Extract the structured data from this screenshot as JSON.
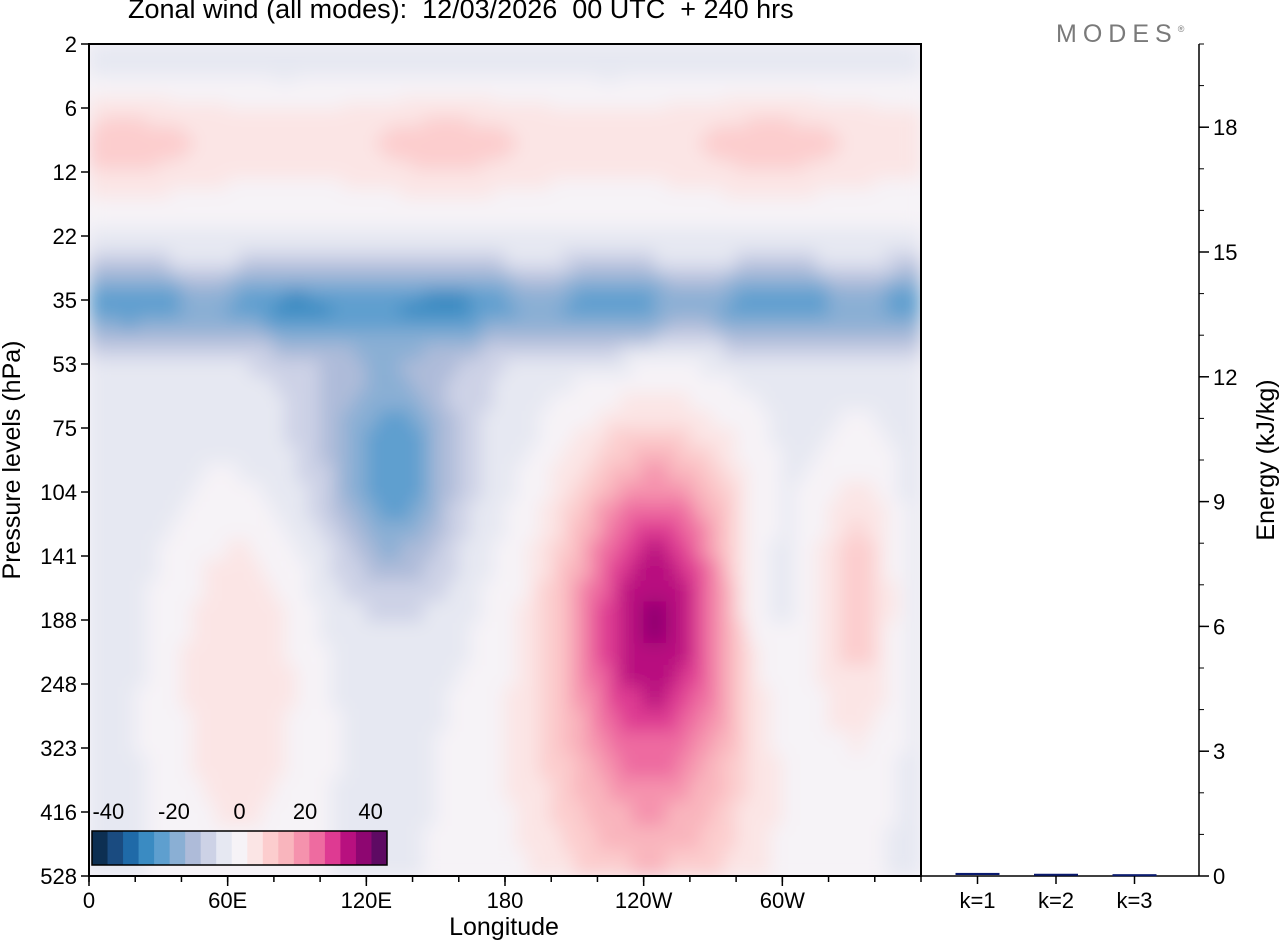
{
  "header": {
    "title": "Zonal wind (all modes):  12/03/2026  00 UTC  + 240 hrs",
    "brand": "MODES",
    "brand_mark": "®"
  },
  "chart_data": [
    {
      "type": "heatmap",
      "title": "Zonal wind (all modes):  12/03/2026  00 UTC  + 240 hrs",
      "xlabel": "Longitude",
      "ylabel": "Pressure levels (hPa)",
      "x_tick_labels": [
        "0",
        "60E",
        "120E",
        "180",
        "120W",
        "60W"
      ],
      "x_tick_degrees": [
        0,
        60,
        120,
        180,
        240,
        300
      ],
      "x_range_degrees": [
        0,
        360
      ],
      "y_levels_hPa": [
        "2",
        "6",
        "12",
        "22",
        "35",
        "53",
        "75",
        "104",
        "141",
        "188",
        "248",
        "323",
        "416",
        "528"
      ],
      "y_axis": "log-pressure, inverted (2 hPa at top, 528 hPa at bottom)",
      "colorbar": {
        "labels": [
          "-40",
          "-20",
          "0",
          "20",
          "40"
        ],
        "min": -45,
        "max": 45,
        "step": 5,
        "colors": [
          "#0d2f52",
          "#1a4b80",
          "#1f6aa8",
          "#3a8bc2",
          "#5e9fcf",
          "#8aafd4",
          "#aebbd9",
          "#cdd2e6",
          "#e6e8f2",
          "#f6f3f7",
          "#fbe5e5",
          "#fccdce",
          "#f9b5bd",
          "#f592ad",
          "#ee6ba0",
          "#de3a92",
          "#b8107f",
          "#8e0671",
          "#5e0a63"
        ]
      },
      "features": [
        {
          "name": "upper pink band",
          "level_hPa": "6-14",
          "value_ms": 12
        },
        {
          "name": "easterly jet",
          "level_hPa": "28-45",
          "value_ms": -22
        },
        {
          "name": "westerly max near 120W",
          "level_hPa": "104-300",
          "value_ms": 35
        },
        {
          "name": "easterlies near 120E-140E",
          "level_hPa": "75-141",
          "value_ms": -18
        },
        {
          "name": "westerlies near 50E-75E",
          "level_hPa": "104-330",
          "value_ms": 12
        },
        {
          "name": "westerlies near 45W-20W",
          "level_hPa": "104-250",
          "value_ms": 15
        }
      ]
    },
    {
      "type": "bar",
      "ylabel": "Energy (kJ/kg)",
      "categories": [
        "k=1",
        "k=2",
        "k=3"
      ],
      "values": [
        0.05,
        0.03,
        0.02
      ],
      "ylim": [
        0,
        20
      ],
      "y_tick_labels": [
        "0",
        "3",
        "6",
        "9",
        "12",
        "15",
        "18"
      ],
      "y_ticks": [
        0,
        3,
        6,
        9,
        12,
        15,
        18
      ],
      "bar_color": "#0a1a6e"
    }
  ]
}
